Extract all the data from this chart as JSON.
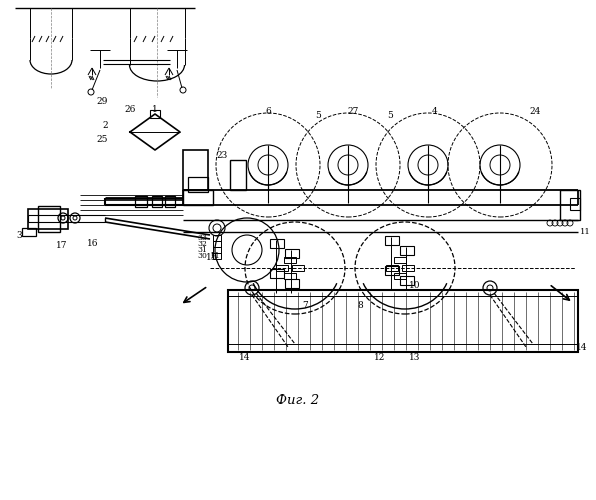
{
  "title": "Фиг. 2",
  "bg_color": "#ffffff",
  "line_color": "#000000",
  "fig_width": 5.96,
  "fig_height": 5.0,
  "dpi": 100
}
